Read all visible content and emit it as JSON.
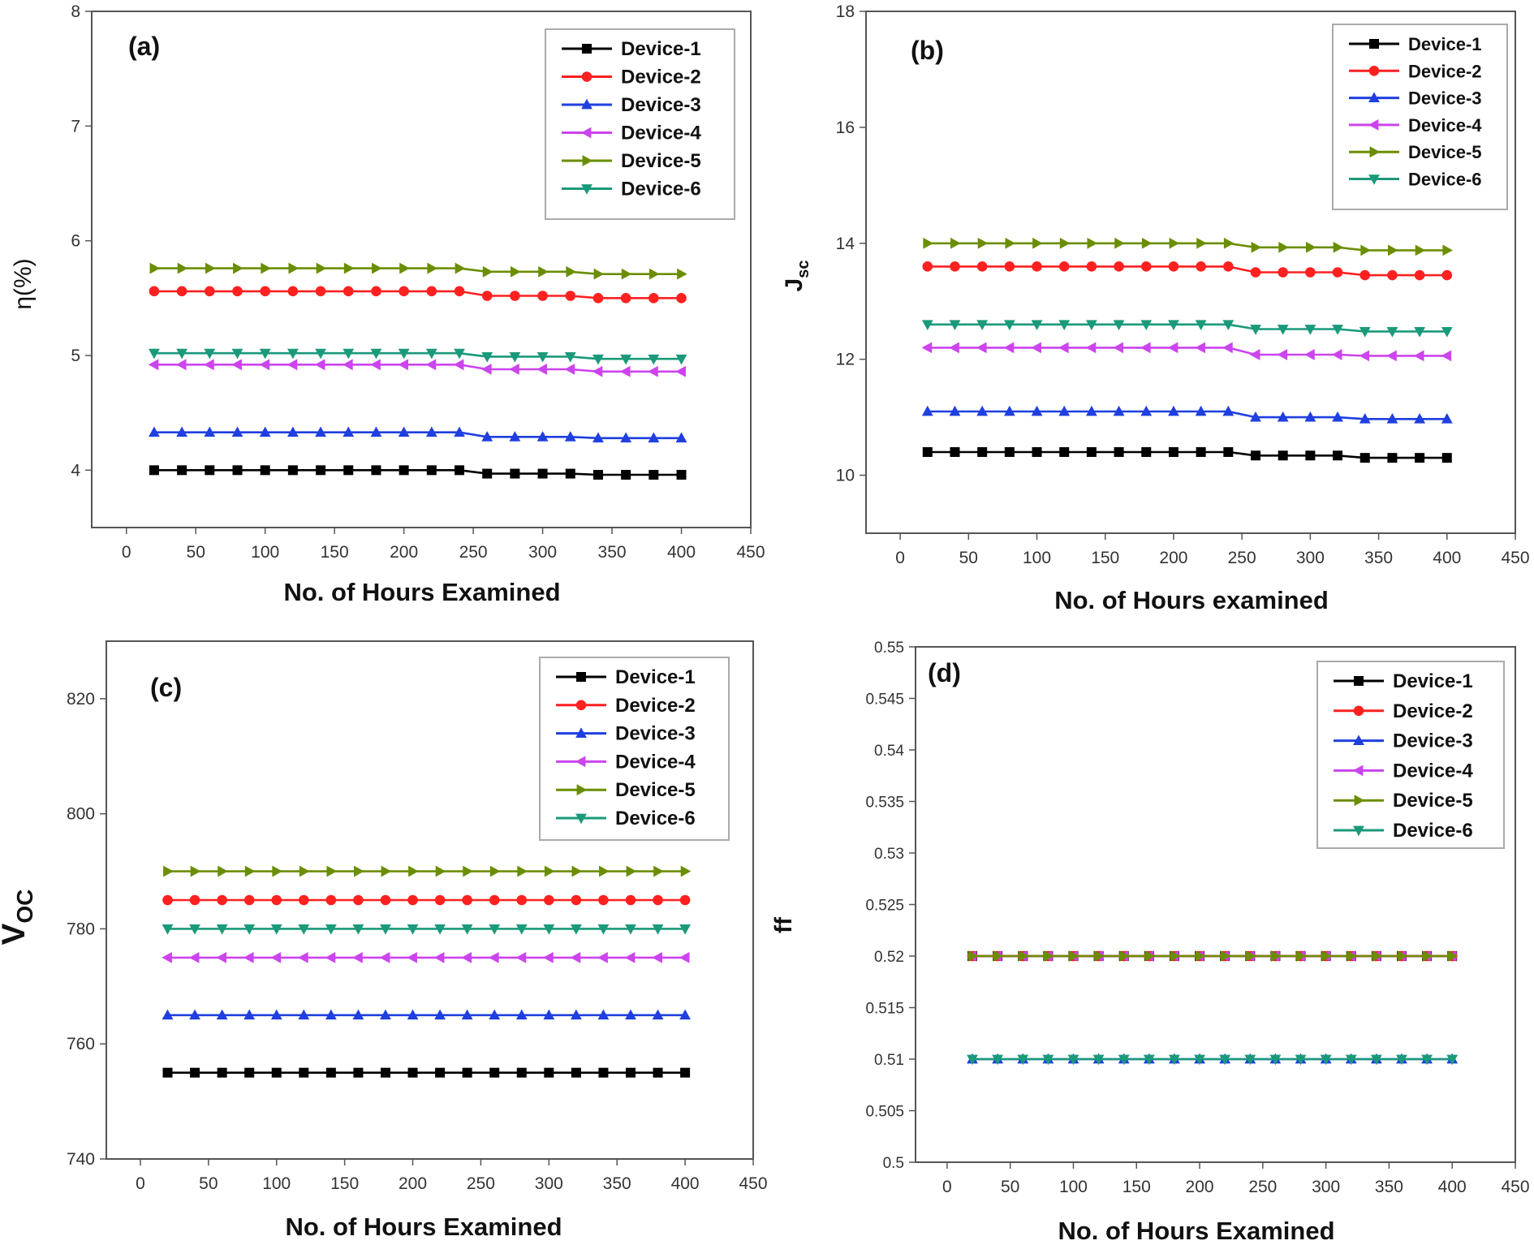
{
  "chart_data": [
    {
      "type": "line",
      "panel_label": "(a)",
      "xlabel": "No. of Hours Examined",
      "ylabel": "η(%)",
      "xlim": [
        -25,
        450
      ],
      "ylim": [
        3.5,
        8
      ],
      "xticks": [
        0,
        50,
        100,
        150,
        200,
        250,
        300,
        350,
        400,
        450
      ],
      "yticks": [
        4,
        5,
        6,
        7,
        8
      ],
      "grid": false,
      "legend_position": "top-right",
      "x": [
        20,
        40,
        60,
        80,
        100,
        120,
        140,
        160,
        180,
        200,
        220,
        240,
        260,
        280,
        300,
        320,
        340,
        360,
        380,
        400
      ],
      "series": [
        {
          "name": "Device-1",
          "color": "#000000",
          "marker": "square",
          "values": [
            4.0,
            4.0,
            4.0,
            4.0,
            4.0,
            4.0,
            4.0,
            4.0,
            4.0,
            4.0,
            4.0,
            4.0,
            3.97,
            3.97,
            3.97,
            3.97,
            3.96,
            3.96,
            3.96,
            3.96
          ]
        },
        {
          "name": "Device-2",
          "color": "#ff2020",
          "marker": "circle",
          "values": [
            5.56,
            5.56,
            5.56,
            5.56,
            5.56,
            5.56,
            5.56,
            5.56,
            5.56,
            5.56,
            5.56,
            5.56,
            5.52,
            5.52,
            5.52,
            5.52,
            5.5,
            5.5,
            5.5,
            5.5
          ]
        },
        {
          "name": "Device-3",
          "color": "#1f3fe0",
          "marker": "triangle-up",
          "values": [
            4.33,
            4.33,
            4.33,
            4.33,
            4.33,
            4.33,
            4.33,
            4.33,
            4.33,
            4.33,
            4.33,
            4.33,
            4.29,
            4.29,
            4.29,
            4.29,
            4.28,
            4.28,
            4.28,
            4.28
          ]
        },
        {
          "name": "Device-4",
          "color": "#cc44ee",
          "marker": "triangle-left",
          "values": [
            4.92,
            4.92,
            4.92,
            4.92,
            4.92,
            4.92,
            4.92,
            4.92,
            4.92,
            4.92,
            4.92,
            4.92,
            4.88,
            4.88,
            4.88,
            4.88,
            4.86,
            4.86,
            4.86,
            4.86
          ]
        },
        {
          "name": "Device-5",
          "color": "#6b8e00",
          "marker": "triangle-right",
          "values": [
            5.76,
            5.76,
            5.76,
            5.76,
            5.76,
            5.76,
            5.76,
            5.76,
            5.76,
            5.76,
            5.76,
            5.76,
            5.73,
            5.73,
            5.73,
            5.73,
            5.71,
            5.71,
            5.71,
            5.71
          ]
        },
        {
          "name": "Device-6",
          "color": "#1a9a7a",
          "marker": "triangle-down",
          "values": [
            5.02,
            5.02,
            5.02,
            5.02,
            5.02,
            5.02,
            5.02,
            5.02,
            5.02,
            5.02,
            5.02,
            5.02,
            4.99,
            4.99,
            4.99,
            4.99,
            4.97,
            4.97,
            4.97,
            4.97
          ]
        }
      ]
    },
    {
      "type": "line",
      "panel_label": "(b)",
      "xlabel": "No. of Hours examined",
      "ylabel": "J",
      "ylabel_sub": "sc",
      "xlim": [
        -25,
        450
      ],
      "ylim": [
        9,
        18
      ],
      "xticks": [
        0,
        50,
        100,
        150,
        200,
        250,
        300,
        350,
        400,
        450
      ],
      "yticks": [
        10,
        12,
        14,
        16,
        18
      ],
      "grid": false,
      "legend_position": "top-right",
      "x": [
        20,
        40,
        60,
        80,
        100,
        120,
        140,
        160,
        180,
        200,
        220,
        240,
        260,
        280,
        300,
        320,
        340,
        360,
        380,
        400
      ],
      "series": [
        {
          "name": "Device-1",
          "color": "#000000",
          "marker": "square",
          "values": [
            10.4,
            10.4,
            10.4,
            10.4,
            10.4,
            10.4,
            10.4,
            10.4,
            10.4,
            10.4,
            10.4,
            10.4,
            10.34,
            10.34,
            10.34,
            10.34,
            10.3,
            10.3,
            10.3,
            10.3
          ]
        },
        {
          "name": "Device-2",
          "color": "#ff2020",
          "marker": "circle",
          "values": [
            13.6,
            13.6,
            13.6,
            13.6,
            13.6,
            13.6,
            13.6,
            13.6,
            13.6,
            13.6,
            13.6,
            13.6,
            13.5,
            13.5,
            13.5,
            13.5,
            13.45,
            13.45,
            13.45,
            13.45
          ]
        },
        {
          "name": "Device-3",
          "color": "#1f3fe0",
          "marker": "triangle-up",
          "values": [
            11.1,
            11.1,
            11.1,
            11.1,
            11.1,
            11.1,
            11.1,
            11.1,
            11.1,
            11.1,
            11.1,
            11.1,
            11.0,
            11.0,
            11.0,
            11.0,
            10.97,
            10.97,
            10.97,
            10.97
          ]
        },
        {
          "name": "Device-4",
          "color": "#cc44ee",
          "marker": "triangle-left",
          "values": [
            12.2,
            12.2,
            12.2,
            12.2,
            12.2,
            12.2,
            12.2,
            12.2,
            12.2,
            12.2,
            12.2,
            12.2,
            12.08,
            12.08,
            12.08,
            12.08,
            12.06,
            12.06,
            12.06,
            12.06
          ]
        },
        {
          "name": "Device-5",
          "color": "#6b8e00",
          "marker": "triangle-right",
          "values": [
            14.0,
            14.0,
            14.0,
            14.0,
            14.0,
            14.0,
            14.0,
            14.0,
            14.0,
            14.0,
            14.0,
            14.0,
            13.93,
            13.93,
            13.93,
            13.93,
            13.88,
            13.88,
            13.88,
            13.88
          ]
        },
        {
          "name": "Device-6",
          "color": "#1a9a7a",
          "marker": "triangle-down",
          "values": [
            12.6,
            12.6,
            12.6,
            12.6,
            12.6,
            12.6,
            12.6,
            12.6,
            12.6,
            12.6,
            12.6,
            12.6,
            12.52,
            12.52,
            12.52,
            12.52,
            12.48,
            12.48,
            12.48,
            12.48
          ]
        }
      ]
    },
    {
      "type": "line",
      "panel_label": "(c)",
      "xlabel": "No. of Hours Examined",
      "ylabel": "V",
      "ylabel_sub": "OC",
      "xlim": [
        -25,
        450
      ],
      "ylim": [
        740,
        830
      ],
      "xticks": [
        0,
        50,
        100,
        150,
        200,
        250,
        300,
        350,
        400,
        450
      ],
      "yticks": [
        740,
        760,
        780,
        800,
        820
      ],
      "grid": false,
      "legend_position": "top-right",
      "x": [
        20,
        40,
        60,
        80,
        100,
        120,
        140,
        160,
        180,
        200,
        220,
        240,
        260,
        280,
        300,
        320,
        340,
        360,
        380,
        400
      ],
      "series": [
        {
          "name": "Device-1",
          "color": "#000000",
          "marker": "square",
          "values": [
            755,
            755,
            755,
            755,
            755,
            755,
            755,
            755,
            755,
            755,
            755,
            755,
            755,
            755,
            755,
            755,
            755,
            755,
            755,
            755
          ]
        },
        {
          "name": "Device-2",
          "color": "#ff2020",
          "marker": "circle",
          "values": [
            785,
            785,
            785,
            785,
            785,
            785,
            785,
            785,
            785,
            785,
            785,
            785,
            785,
            785,
            785,
            785,
            785,
            785,
            785,
            785
          ]
        },
        {
          "name": "Device-3",
          "color": "#1f3fe0",
          "marker": "triangle-up",
          "values": [
            765,
            765,
            765,
            765,
            765,
            765,
            765,
            765,
            765,
            765,
            765,
            765,
            765,
            765,
            765,
            765,
            765,
            765,
            765,
            765
          ]
        },
        {
          "name": "Device-4",
          "color": "#cc44ee",
          "marker": "triangle-left",
          "values": [
            775,
            775,
            775,
            775,
            775,
            775,
            775,
            775,
            775,
            775,
            775,
            775,
            775,
            775,
            775,
            775,
            775,
            775,
            775,
            775
          ]
        },
        {
          "name": "Device-5",
          "color": "#6b8e00",
          "marker": "triangle-right",
          "values": [
            790,
            790,
            790,
            790,
            790,
            790,
            790,
            790,
            790,
            790,
            790,
            790,
            790,
            790,
            790,
            790,
            790,
            790,
            790,
            790
          ]
        },
        {
          "name": "Device-6",
          "color": "#1a9a7a",
          "marker": "triangle-down",
          "values": [
            780,
            780,
            780,
            780,
            780,
            780,
            780,
            780,
            780,
            780,
            780,
            780,
            780,
            780,
            780,
            780,
            780,
            780,
            780,
            780
          ]
        }
      ]
    },
    {
      "type": "line",
      "panel_label": "(d)",
      "xlabel": "No. of Hours Examined",
      "ylabel": "ff",
      "xlim": [
        -25,
        450
      ],
      "ylim": [
        0.5,
        0.55
      ],
      "xticks": [
        0,
        50,
        100,
        150,
        200,
        250,
        300,
        350,
        400,
        450
      ],
      "yticks": [
        0.5,
        0.505,
        0.51,
        0.515,
        0.52,
        0.525,
        0.53,
        0.535,
        0.54,
        0.545,
        0.55
      ],
      "grid": false,
      "legend_position": "top-right",
      "x": [
        20,
        40,
        60,
        80,
        100,
        120,
        140,
        160,
        180,
        200,
        220,
        240,
        260,
        280,
        300,
        320,
        340,
        360,
        380,
        400
      ],
      "series": [
        {
          "name": "Device-1",
          "color": "#000000",
          "marker": "square",
          "values": [
            0.52,
            0.52,
            0.52,
            0.52,
            0.52,
            0.52,
            0.52,
            0.52,
            0.52,
            0.52,
            0.52,
            0.52,
            0.52,
            0.52,
            0.52,
            0.52,
            0.52,
            0.52,
            0.52,
            0.52
          ]
        },
        {
          "name": "Device-2",
          "color": "#ff2020",
          "marker": "circle",
          "values": [
            0.52,
            0.52,
            0.52,
            0.52,
            0.52,
            0.52,
            0.52,
            0.52,
            0.52,
            0.52,
            0.52,
            0.52,
            0.52,
            0.52,
            0.52,
            0.52,
            0.52,
            0.52,
            0.52,
            0.52
          ]
        },
        {
          "name": "Device-3",
          "color": "#1f3fe0",
          "marker": "triangle-up",
          "values": [
            0.51,
            0.51,
            0.51,
            0.51,
            0.51,
            0.51,
            0.51,
            0.51,
            0.51,
            0.51,
            0.51,
            0.51,
            0.51,
            0.51,
            0.51,
            0.51,
            0.51,
            0.51,
            0.51,
            0.51
          ]
        },
        {
          "name": "Device-4",
          "color": "#cc44ee",
          "marker": "triangle-left",
          "values": [
            0.52,
            0.52,
            0.52,
            0.52,
            0.52,
            0.52,
            0.52,
            0.52,
            0.52,
            0.52,
            0.52,
            0.52,
            0.52,
            0.52,
            0.52,
            0.52,
            0.52,
            0.52,
            0.52,
            0.52
          ]
        },
        {
          "name": "Device-5",
          "color": "#6b8e00",
          "marker": "triangle-right",
          "values": [
            0.52,
            0.52,
            0.52,
            0.52,
            0.52,
            0.52,
            0.52,
            0.52,
            0.52,
            0.52,
            0.52,
            0.52,
            0.52,
            0.52,
            0.52,
            0.52,
            0.52,
            0.52,
            0.52,
            0.52
          ]
        },
        {
          "name": "Device-6",
          "color": "#1a9a7a",
          "marker": "triangle-down",
          "values": [
            0.51,
            0.51,
            0.51,
            0.51,
            0.51,
            0.51,
            0.51,
            0.51,
            0.51,
            0.51,
            0.51,
            0.51,
            0.51,
            0.51,
            0.51,
            0.51,
            0.51,
            0.51,
            0.51,
            0.51
          ]
        }
      ]
    }
  ]
}
